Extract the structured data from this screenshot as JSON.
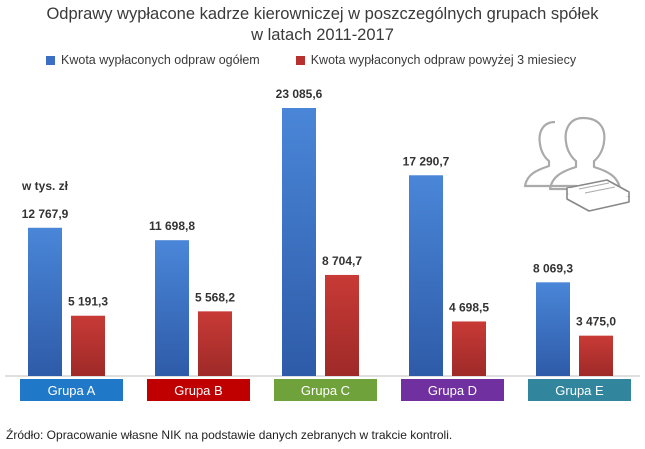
{
  "chart_data": {
    "type": "bar",
    "title_line1": "Odprawy wypłacone kadrze kierowniczej w poszczególnych grupach spółek",
    "title_line2": "w latach 2011-2017",
    "unit_label": "w tys. zł",
    "categories": [
      "Grupa A",
      "Grupa B",
      "Grupa C",
      "Grupa D",
      "Grupa E"
    ],
    "category_colors": [
      "#1f78c8",
      "#c00000",
      "#70a23c",
      "#7030a0",
      "#31859c"
    ],
    "series": [
      {
        "name": "Kwota wypłaconych odpraw ogółem",
        "color": "#3b6fc4",
        "values": [
          12767.9,
          11698.8,
          23085.6,
          17290.7,
          8069.3
        ],
        "labels": [
          "12 767,9",
          "11 698,8",
          "23 085,6",
          "17 290,7",
          "8 069,3"
        ]
      },
      {
        "name": "Kwota wypłaconych odpraw powyżej 3 miesiecy",
        "color": "#b8312f",
        "values": [
          5191.3,
          5568.2,
          8704.7,
          4698.5,
          3475.0
        ],
        "labels": [
          "5 191,3",
          "5 568,2",
          "8 704,7",
          "4 698,5",
          "3 475,0"
        ]
      }
    ],
    "ylim": [
      0,
      23085.6
    ],
    "grid": false,
    "legend_position": "top"
  },
  "source_text": "Źródło: Opracowanie własne NIK na podstawie danych zebranych w trakcie kontroli.",
  "decoration": {
    "icon": "people-money-icon"
  }
}
